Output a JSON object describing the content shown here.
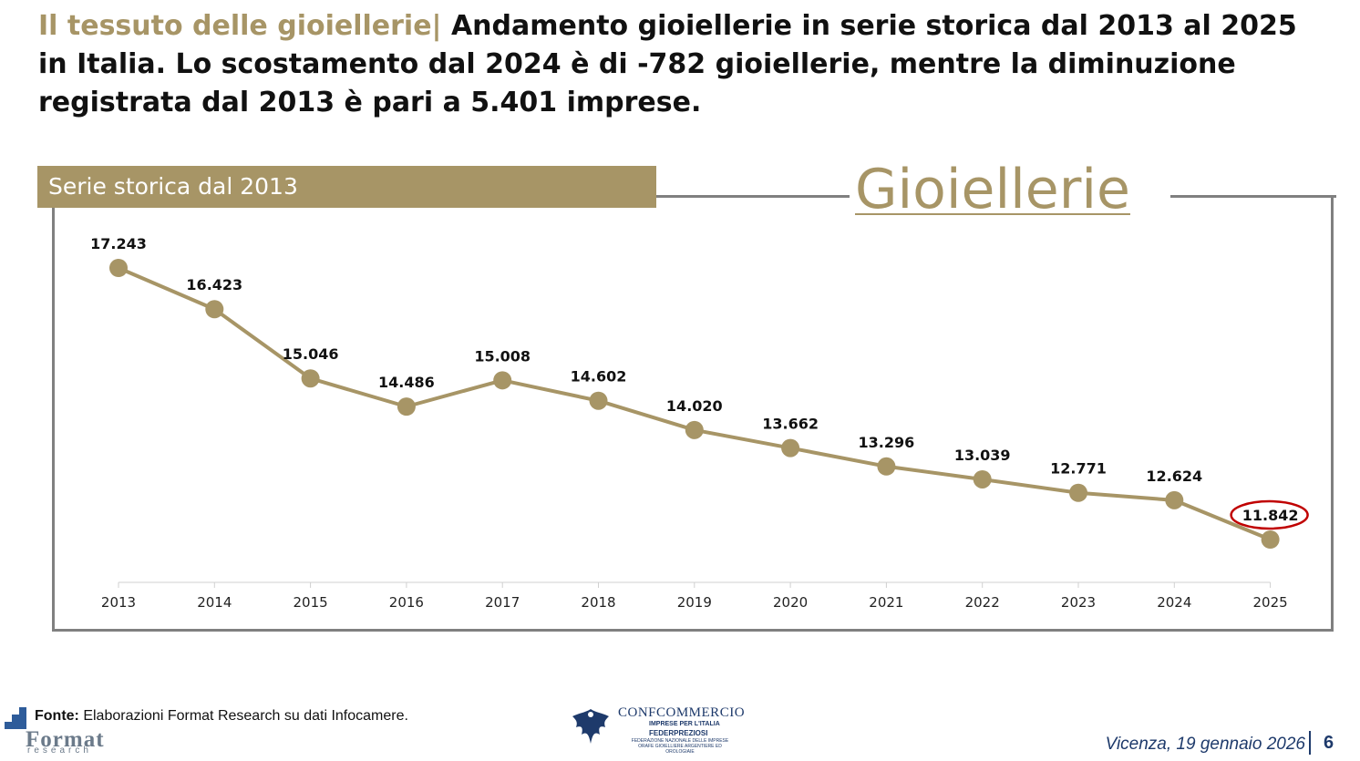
{
  "header": {
    "prefix": "Il tessuto delle gioiellerie|",
    "title": " Andamento gioiellerie in serie storica dal 2013 al 2025 in Italia. Lo scostamento dal 2024 è di -782 gioiellerie, mentre la diminuzione registrata dal 2013 è pari a 5.401 imprese."
  },
  "banner": {
    "label": "Serie storica dal 2013"
  },
  "section_title": "Gioiellerie",
  "colors": {
    "accent": "#a79566",
    "frame": "#808080",
    "highlight": "#c00000",
    "navy": "#1e3a6b"
  },
  "chart_data": {
    "type": "line",
    "title": "Gioiellerie",
    "subtitle": "Serie storica dal 2013",
    "categories": [
      "2013",
      "2014",
      "2015",
      "2016",
      "2017",
      "2018",
      "2019",
      "2020",
      "2021",
      "2022",
      "2023",
      "2024",
      "2025"
    ],
    "values": [
      17243,
      16423,
      15046,
      14486,
      15008,
      14602,
      14020,
      13662,
      13296,
      13039,
      12771,
      12624,
      11842
    ],
    "value_labels": [
      "17.243",
      "16.423",
      "15.046",
      "14.486",
      "15.008",
      "14.602",
      "14.020",
      "13.662",
      "13.296",
      "13.039",
      "12.771",
      "12.624",
      "11.842"
    ],
    "highlighted_index": 12,
    "xlabel": "",
    "ylabel": "",
    "ylim": [
      11300,
      17300
    ],
    "grid": false,
    "legend": "none"
  },
  "footer": {
    "source_label": "Fonte:",
    "source_text": " Elaborazioni Format Research su dati Infocamere.",
    "location_date": "Vicenza, 19 gennaio 2026",
    "page_number": "6",
    "format_word": "Format",
    "format_sub": "research",
    "confcommercio": "CONFCOMMERCIO",
    "confcommercio_sub": "IMPRESE PER L'ITALIA",
    "federpreziosi": "FEDERPREZIOSI",
    "federpreziosi_desc": "FEDERAZIONE NAZIONALE DELLE IMPRESE ORAFE GIOIELLIERE ARGENTIERE ED OROLOGIAIE"
  }
}
